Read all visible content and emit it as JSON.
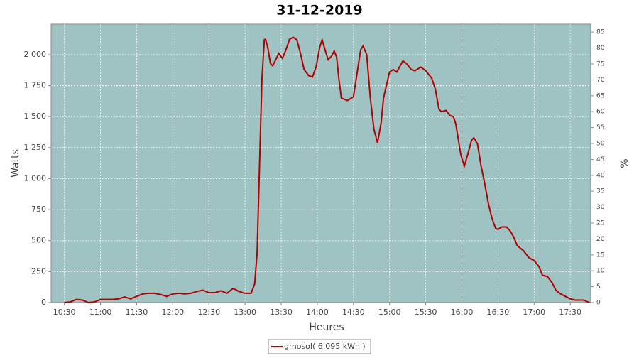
{
  "chart_data": {
    "type": "line",
    "title": "31-12-2019",
    "x_label": "Heures",
    "y_label": "Watts",
    "y2_label": "%",
    "background": "#9fc2c2",
    "grid": true,
    "legend": "bottom",
    "xlim": [
      "10:19",
      "17:47"
    ],
    "xticks": [
      "10:30",
      "11:00",
      "11:30",
      "12:00",
      "12:30",
      "13:00",
      "13:30",
      "14:00",
      "14:30",
      "15:00",
      "15:30",
      "16:00",
      "16:30",
      "17:00",
      "17:30"
    ],
    "ylim": [
      0,
      2246
    ],
    "yticks": [
      0,
      250,
      500,
      750,
      {
        "value": 1000,
        "label": "1 000"
      },
      {
        "value": 1250,
        "label": "1 250"
      },
      {
        "value": 1500,
        "label": "1 500"
      },
      {
        "value": 1750,
        "label": "1 750"
      },
      {
        "value": 2000,
        "label": "2 000"
      }
    ],
    "y2lim": [
      0,
      87.5
    ],
    "y2ticks": [
      0,
      5,
      10,
      15,
      20,
      25,
      30,
      35,
      40,
      45,
      50,
      55,
      60,
      65,
      70,
      75,
      80,
      85
    ],
    "x": [
      "10:30",
      "10:35",
      "10:40",
      "10:45",
      "10:50",
      "10:55",
      "11:00",
      "11:05",
      "11:10",
      "11:15",
      "11:20",
      "11:25",
      "11:30",
      "11:35",
      "11:40",
      "11:45",
      "11:50",
      "11:55",
      "12:00",
      "12:05",
      "12:10",
      "12:15",
      "12:20",
      "12:25",
      "12:30",
      "12:35",
      "12:40",
      "12:45",
      "12:50",
      "12:55",
      "13:00",
      "13:05",
      "13:08",
      "13:10",
      "13:12",
      "13:14",
      "13:16",
      "13:17",
      "13:19",
      "13:21",
      "13:23",
      "13:26",
      "13:28",
      "13:31",
      "13:34",
      "13:37",
      "13:40",
      "13:43",
      "13:46",
      "13:49",
      "13:53",
      "13:56",
      "13:59",
      "14:02",
      "14:04",
      "14:07",
      "14:09",
      "14:12",
      "14:14",
      "14:16",
      "14:18",
      "14:20",
      "14:25",
      "14:30",
      "14:33",
      "14:36",
      "14:38",
      "14:41",
      "14:44",
      "14:47",
      "14:50",
      "14:53",
      "14:55",
      "15:00",
      "15:03",
      "15:06",
      "15:11",
      "15:14",
      "15:18",
      "15:21",
      "15:26",
      "15:30",
      "15:35",
      "15:38",
      "15:41",
      "15:43",
      "15:47",
      "15:50",
      "15:53",
      "15:55",
      "15:59",
      "16:02",
      "16:05",
      "16:08",
      "16:10",
      "16:13",
      "16:16",
      "16:19",
      "16:22",
      "16:25",
      "16:28",
      "16:30",
      "16:33",
      "16:37",
      "16:40",
      "16:43",
      "16:46",
      "16:51",
      "16:56",
      "17:00",
      "17:04",
      "17:07",
      "17:11",
      "17:15",
      "17:18",
      "17:22",
      "17:26",
      "17:30",
      "17:34",
      "17:41",
      "17:46"
    ],
    "series": [
      {
        "name": "gmosol( 6,095 kWh )",
        "color": "#b00000",
        "values": [
          0,
          5,
          25,
          20,
          0,
          5,
          25,
          25,
          25,
          30,
          45,
          30,
          50,
          70,
          75,
          75,
          65,
          50,
          70,
          75,
          70,
          75,
          90,
          100,
          80,
          80,
          95,
          75,
          115,
          90,
          75,
          75,
          150,
          400,
          1100,
          1800,
          2120,
          2125,
          2050,
          1930,
          1910,
          1970,
          2010,
          1970,
          2040,
          2125,
          2140,
          2120,
          2010,
          1880,
          1830,
          1820,
          1900,
          2060,
          2120,
          2020,
          1960,
          1990,
          2030,
          1980,
          1800,
          1650,
          1630,
          1660,
          1850,
          2040,
          2070,
          2000,
          1650,
          1400,
          1290,
          1450,
          1650,
          1860,
          1880,
          1860,
          1950,
          1930,
          1880,
          1870,
          1900,
          1870,
          1810,
          1720,
          1560,
          1540,
          1550,
          1510,
          1500,
          1440,
          1200,
          1100,
          1200,
          1310,
          1330,
          1280,
          1100,
          960,
          800,
          680,
          600,
          590,
          610,
          610,
          580,
          530,
          460,
          420,
          360,
          340,
          290,
          220,
          210,
          160,
          100,
          70,
          50,
          30,
          20,
          20,
          0
        ]
      }
    ]
  }
}
